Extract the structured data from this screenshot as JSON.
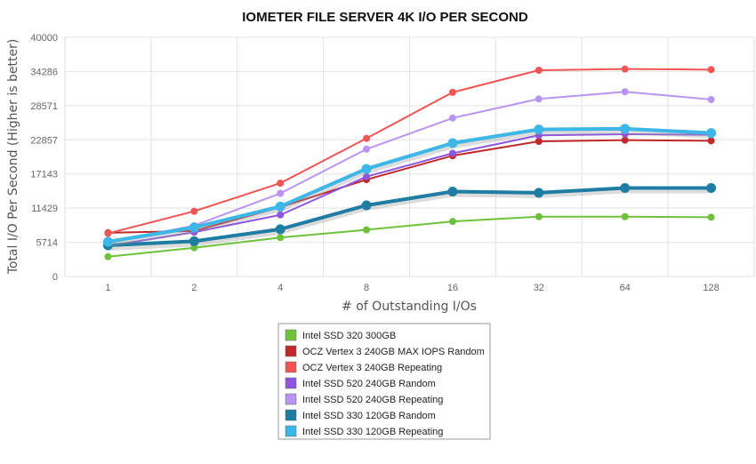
{
  "chart_data": {
    "type": "line",
    "title": "IOMETER FILE SERVER 4K I/O PER SECOND",
    "xlabel": "# of Outstanding I/Os",
    "ylabel": "Total I/O Per Second (Higher is better)",
    "categories": [
      "1",
      "2",
      "4",
      "8",
      "16",
      "32",
      "64",
      "128"
    ],
    "yticks": [
      "0",
      "5714",
      "11429",
      "17143",
      "22857",
      "28571",
      "34286",
      "40000"
    ],
    "ylim": [
      0,
      40000
    ],
    "grid": true,
    "legend_position": "bottom-center",
    "series": [
      {
        "name": "Intel SSD 320 300GB",
        "color": "#6ec13a",
        "emphasis": false,
        "values": [
          3300,
          4800,
          6500,
          7800,
          9200,
          10000,
          10000,
          9900
        ]
      },
      {
        "name": "OCZ Vertex 3 240GB MAX IOPS Random",
        "color": "#c0282a",
        "emphasis": false,
        "values": [
          7300,
          7600,
          11600,
          16200,
          20200,
          22600,
          22800,
          22700
        ]
      },
      {
        "name": "OCZ Vertex 3 240GB Repeating",
        "color": "#ee5553",
        "emphasis": false,
        "values": [
          7200,
          10900,
          15600,
          23100,
          30800,
          34500,
          34700,
          34600
        ]
      },
      {
        "name": "Intel SSD 520 240GB Random",
        "color": "#8c56df",
        "emphasis": false,
        "values": [
          5100,
          7400,
          10300,
          16700,
          20600,
          23600,
          23800,
          23700
        ]
      },
      {
        "name": "Intel SSD 520 240GB Repeating",
        "color": "#b994f2",
        "emphasis": false,
        "values": [
          5700,
          8500,
          13900,
          21300,
          26500,
          29700,
          30900,
          29600
        ]
      },
      {
        "name": "Intel SSD 330 120GB Random",
        "color": "#1f7ca3",
        "emphasis": true,
        "values": [
          5200,
          5900,
          7900,
          11900,
          14200,
          14000,
          14800,
          14800
        ]
      },
      {
        "name": "Intel SSD 330 120GB Repeating",
        "color": "#3db7e8",
        "emphasis": true,
        "values": [
          5800,
          8200,
          11700,
          18000,
          22300,
          24600,
          24700,
          24000
        ]
      }
    ]
  }
}
